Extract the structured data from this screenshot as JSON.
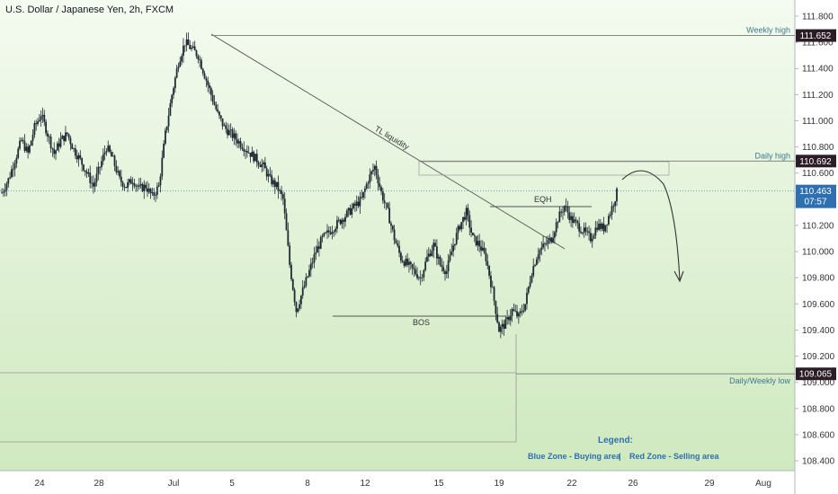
{
  "header": {
    "title": "U.S. Dollar / Japanese Yen, 2h, FXCM"
  },
  "colors": {
    "bg_top": "#f4fbf0",
    "bg_bottom": "#cfe9bf",
    "candle": "#1f2a33",
    "line": "#555555",
    "level_tag": "#2b1d26",
    "current_tag": "#2e6fb0"
  },
  "chart_data": {
    "type": "candlestick",
    "title": "U.S. Dollar / Japanese Yen, 2h, FXCM",
    "ylim": [
      108.3,
      111.93
    ],
    "y_ticks": [
      108.4,
      108.6,
      108.8,
      109.0,
      109.2,
      109.4,
      109.6,
      109.8,
      110.0,
      110.2,
      110.4,
      110.6,
      110.8,
      111.0,
      111.2,
      111.4,
      111.6,
      111.8
    ],
    "y_tick_labels": [
      "108.400",
      "108.600",
      "108.800",
      "109.000",
      "109.200",
      "109.400",
      "109.600",
      "109.800",
      "110.000",
      "110.200",
      "110.400",
      "110.600",
      "110.800",
      "111.000",
      "111.200",
      "111.400",
      "111.600",
      "111.800"
    ],
    "x_ticks": [
      {
        "label": "24",
        "pos": 0
      },
      {
        "label": "28",
        "pos": 1
      },
      {
        "label": "Jul",
        "pos": 2
      },
      {
        "label": "5",
        "pos": 3
      },
      {
        "label": "8",
        "pos": 4
      },
      {
        "label": "12",
        "pos": 5
      },
      {
        "label": "15",
        "pos": 6
      },
      {
        "label": "19",
        "pos": 7
      },
      {
        "label": "22",
        "pos": 8
      },
      {
        "label": "26",
        "pos": 9
      },
      {
        "label": "29",
        "pos": 10
      },
      {
        "label": "Aug",
        "pos": 11
      }
    ],
    "levels": [
      {
        "name": "weekly-high",
        "value": 111.652,
        "label": "Weekly high",
        "tag": "111.652"
      },
      {
        "name": "daily-high",
        "value": 110.692,
        "label": "Daily high",
        "tag": "110.692"
      },
      {
        "name": "daily-weekly-low",
        "value": 109.065,
        "label": "Daily/Weekly low",
        "tag": "109.065"
      }
    ],
    "current_price": {
      "value": 110.463,
      "tag": "110.463",
      "countdown": "07:57"
    },
    "annotations": {
      "tl": "TL liquidity",
      "eqh": "EQH",
      "bos": "BOS",
      "bos_level": 109.52,
      "eqh_level": 110.35
    },
    "legend": {
      "title": "Legend:",
      "blue": "Blue Zone - Buying area",
      "separator": "|",
      "red": "Red Zone - Selling area"
    },
    "path_closes": [
      110.45,
      110.55,
      110.7,
      110.85,
      110.75,
      110.95,
      111.05,
      110.9,
      110.75,
      110.85,
      110.9,
      110.78,
      110.7,
      110.6,
      110.5,
      110.65,
      110.8,
      110.7,
      110.55,
      110.5,
      110.55,
      110.48,
      110.5,
      110.42,
      110.5,
      110.9,
      111.2,
      111.45,
      111.6,
      111.55,
      111.5,
      111.35,
      111.2,
      111.05,
      110.95,
      110.9,
      110.85,
      110.8,
      110.75,
      110.7,
      110.65,
      110.55,
      110.5,
      110.4,
      109.9,
      109.55,
      109.7,
      109.85,
      110.0,
      110.1,
      110.15,
      110.2,
      110.25,
      110.3,
      110.35,
      110.4,
      110.55,
      110.65,
      110.45,
      110.3,
      110.1,
      109.95,
      109.9,
      109.85,
      109.8,
      109.95,
      110.05,
      109.9,
      109.85,
      110.05,
      110.2,
      110.3,
      110.1,
      110.05,
      109.95,
      109.7,
      109.4,
      109.45,
      109.55,
      109.5,
      109.6,
      109.85,
      110.0,
      110.05,
      110.1,
      110.25,
      110.35,
      110.25,
      110.2,
      110.15,
      110.1,
      110.2,
      110.18,
      110.3,
      110.45
    ]
  }
}
